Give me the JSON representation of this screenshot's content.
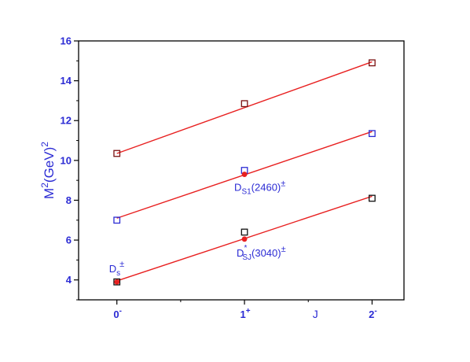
{
  "chart_data": {
    "type": "scatter",
    "title": "",
    "xlabel": "J",
    "ylabel": "M",
    "ylabel_sup": "2",
    "ylabel_unit": "(GeV)",
    "ylabel_unit_sup": "2",
    "x_categories": [
      {
        "base": "0",
        "sup": "-"
      },
      {
        "base": "1",
        "sup": "+"
      },
      {
        "base": "2",
        "sup": "-"
      }
    ],
    "xlim": [
      -0.3,
      2.25
    ],
    "ylim": [
      3.0,
      16.0
    ],
    "y_ticks": [
      4,
      6,
      8,
      10,
      12,
      14,
      16
    ],
    "colors": {
      "axis_text": "#2b2bd4",
      "fit_line": "#e82020",
      "exp_point": "#e82020",
      "bottom_series": "#101010",
      "middle_series": "#2b2bd4",
      "top_series": "#7a1010"
    },
    "series": [
      {
        "role": "bottom_series",
        "points": [
          [
            0,
            3.9
          ],
          [
            1,
            6.4
          ],
          [
            2,
            8.1
          ]
        ],
        "fit": [
          [
            0,
            3.95
          ],
          [
            2,
            8.2
          ]
        ]
      },
      {
        "role": "middle_series",
        "points": [
          [
            0,
            7.0
          ],
          [
            1,
            9.5
          ],
          [
            2,
            11.35
          ]
        ],
        "fit": [
          [
            0,
            7.1
          ],
          [
            2,
            11.45
          ]
        ]
      },
      {
        "role": "top_series",
        "points": [
          [
            0,
            10.35
          ],
          [
            1,
            12.85
          ],
          [
            2,
            14.9
          ]
        ],
        "fit": [
          [
            0,
            10.35
          ],
          [
            2,
            14.95
          ]
        ]
      }
    ],
    "experimental_points": [
      [
        0,
        3.9
      ],
      [
        1,
        6.05
      ],
      [
        1,
        9.3
      ]
    ],
    "annotations": [
      {
        "base": "D",
        "sub": "s",
        "sup": "±",
        "x": 0,
        "y": 3.9
      },
      {
        "base": "D",
        "sub": "S1",
        "tail": "(2460)",
        "sup": "±",
        "x": 1,
        "y": 9.3
      },
      {
        "base": "D",
        "sub": "SJ",
        "star": "*",
        "tail": "(3040)",
        "sup": "±",
        "x": 1,
        "y": 6.05
      }
    ]
  }
}
